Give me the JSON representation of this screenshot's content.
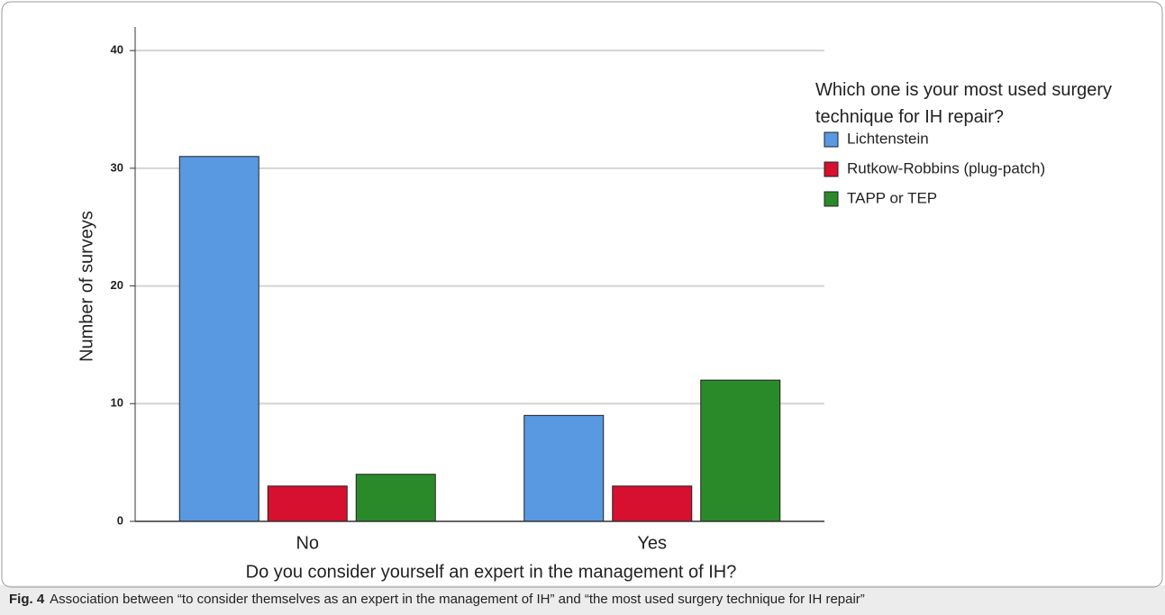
{
  "chart_data": {
    "type": "bar",
    "categories": [
      "No",
      "Yes"
    ],
    "series": [
      {
        "name": "Lichtenstein",
        "color": "#5899e2",
        "values": [
          31,
          9
        ]
      },
      {
        "name": "Rutkow-Robbins (plug-patch)",
        "color": "#d7102f",
        "values": [
          3,
          3
        ]
      },
      {
        "name": "TAPP or TEP",
        "color": "#2a8a2a",
        "values": [
          4,
          12
        ]
      }
    ],
    "ylim": [
      0,
      42
    ],
    "yticks": [
      0,
      10,
      20,
      30,
      40
    ],
    "grid": true,
    "ylabel": "Number of surveys",
    "xlabel": "Do you consider yourself an expert in the management of IH?",
    "legend_title": "Which one is your most used surgery technique for IH repair?",
    "legend_position": "right",
    "caption_label": "Fig. 4",
    "caption": "Association between “to consider themselves as an expert in the management of IH” and “the most used surgery technique for IH repair”"
  }
}
